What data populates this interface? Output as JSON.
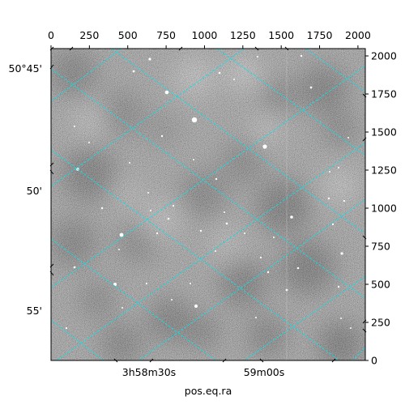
{
  "chart_data": {
    "type": "heatmap",
    "title": "",
    "xlabel": "pos.eq.ra",
    "colormap": "gray",
    "pixel_axes": {
      "top_x_ticks": [
        0,
        250,
        500,
        750,
        1000,
        1250,
        1500,
        1750,
        2000
      ],
      "right_y_ticks": [
        0,
        250,
        500,
        750,
        1000,
        1250,
        1500,
        1750,
        2000
      ],
      "xlim": [
        0,
        2048
      ],
      "ylim": [
        0,
        2048
      ]
    },
    "world_axes": {
      "ra_tick_labels": [
        "3h58m30s",
        "59m00s"
      ],
      "dec_tick_labels": [
        "50°45'",
        "50'",
        "55'"
      ]
    },
    "grid": true,
    "grid_color": "#00e5ee"
  }
}
